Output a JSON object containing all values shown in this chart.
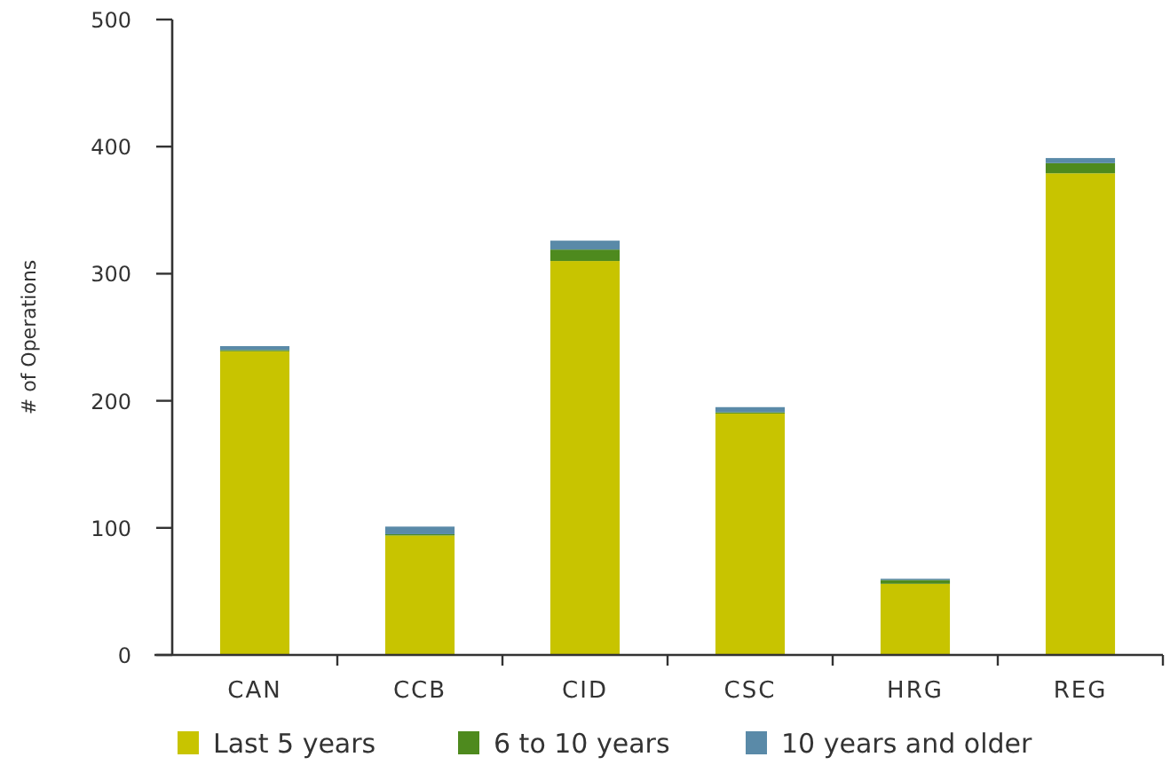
{
  "chart_data": {
    "type": "bar",
    "stacked": true,
    "ylabel": "# of Operations",
    "categories": [
      "CAN",
      "CCB",
      "CID",
      "CSC",
      "HRG",
      "REG"
    ],
    "series": [
      {
        "name": "Last 5 years",
        "color": "#c8c400",
        "values": [
          239,
          94,
          310,
          190,
          56,
          379
        ]
      },
      {
        "name": "6 to 10 years",
        "color": "#4e8a1e",
        "values": [
          1,
          1,
          9,
          1,
          3,
          8
        ]
      },
      {
        "name": "10 years and older",
        "color": "#5a8aa8",
        "values": [
          3,
          6,
          7,
          4,
          1,
          4
        ]
      }
    ],
    "ylim": [
      0,
      500
    ],
    "yticks": [
      0,
      100,
      200,
      300,
      400,
      500
    ],
    "grid": false,
    "legend": "bottom"
  }
}
